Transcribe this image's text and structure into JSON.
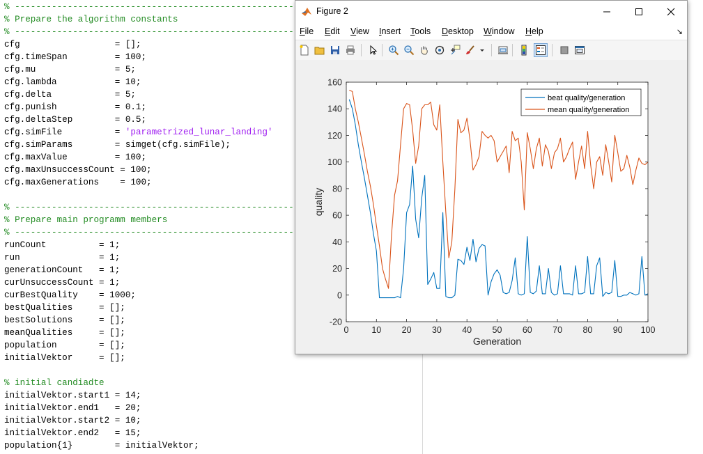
{
  "editor": {
    "lines": [
      {
        "text": "% ----------------------------------------------------------------",
        "cls": "comment"
      },
      {
        "text": "% Prepare the algorithm constants",
        "cls": "comment"
      },
      {
        "text": "% ----------------------------------------------------------------",
        "cls": "comment"
      },
      {
        "text": "cfg                  = [];"
      },
      {
        "text": "cfg.timeSpan         = 100;"
      },
      {
        "text": "cfg.mu               = 5;"
      },
      {
        "text": "cfg.lambda           = 10;"
      },
      {
        "text": "cfg.delta            = 5;"
      },
      {
        "text": "cfg.punish           = 0.1;"
      },
      {
        "text": "cfg.deltaStep        = 0.5;"
      },
      {
        "text": "cfg.simFile          = ",
        "str": "'parametrized_lunar_landing'"
      },
      {
        "text": "cfg.simParams        = simget(cfg.simFile);"
      },
      {
        "text": "cfg.maxValue         = 100;"
      },
      {
        "text": "cfg.maxUnsuccessCount = 100;"
      },
      {
        "text": "cfg.maxGenerations    = 100;"
      },
      {
        "text": ""
      },
      {
        "text": "% ----------------------------------------------------------------",
        "cls": "comment"
      },
      {
        "text": "% Prepare main programm members",
        "cls": "comment"
      },
      {
        "text": "% ----------------------------------------------------------------",
        "cls": "comment"
      },
      {
        "text": "runCount          = 1;"
      },
      {
        "text": "run               = 1;"
      },
      {
        "text": "generationCount   = 1;"
      },
      {
        "text": "curUnsuccessCount = 1;"
      },
      {
        "text": "curBestQuality    = 1000;"
      },
      {
        "text": "bestQualities     = [];"
      },
      {
        "text": "bestSolutions     = [];"
      },
      {
        "text": "meanQualities     = [];"
      },
      {
        "text": "population        = [];"
      },
      {
        "text": "initialVektor     = [];"
      },
      {
        "text": ""
      },
      {
        "text": "% initial candiadte",
        "cls": "comment"
      },
      {
        "text": "initialVektor.start1 = 14;"
      },
      {
        "text": "initialVektor.end1   = 20;"
      },
      {
        "text": "initialVektor.start2 = 10;"
      },
      {
        "text": "initialVektor.end2   = 15;"
      },
      {
        "text": "population{1}        = initialVektor;"
      }
    ]
  },
  "window": {
    "title": "Figure 2",
    "menus": [
      {
        "label": "File",
        "u": "F",
        "rest": "ile"
      },
      {
        "label": "Edit",
        "u": "E",
        "rest": "dit"
      },
      {
        "label": "View",
        "u": "V",
        "rest": "iew"
      },
      {
        "label": "Insert",
        "u": "I",
        "rest": "nsert"
      },
      {
        "label": "Tools",
        "u": "T",
        "rest": "ools"
      },
      {
        "label": "Desktop",
        "u": "D",
        "rest": "esktop"
      },
      {
        "label": "Window",
        "u": "W",
        "rest": "indow"
      },
      {
        "label": "Help",
        "u": "H",
        "rest": "elp"
      }
    ],
    "toolbar_icons": [
      "new-figure-icon",
      "open-file-icon",
      "save-icon",
      "print-icon",
      "pointer-icon",
      "zoom-in-icon",
      "zoom-out-icon",
      "pan-hand-icon",
      "rotate-3d-icon",
      "data-cursor-icon",
      "brush-icon",
      "brush-dropdown-icon",
      "link-plot-icon",
      "colorbar-icon",
      "legend-icon",
      "hide-plot-tools-icon",
      "show-plot-tools-icon"
    ],
    "colors": {
      "series1": "#0072bd",
      "series2": "#d95319"
    }
  },
  "chart_data": {
    "type": "line",
    "xlabel": "Generation",
    "ylabel": "quality",
    "xlim": [
      0,
      100
    ],
    "ylim": [
      -20,
      160
    ],
    "xticks": [
      "0",
      "10",
      "20",
      "30",
      "40",
      "50",
      "60",
      "70",
      "80",
      "90",
      "100"
    ],
    "yticks": [
      "-20",
      "0",
      "20",
      "40",
      "60",
      "80",
      "100",
      "120",
      "140",
      "160"
    ],
    "legend_position": "top-right",
    "series": [
      {
        "name": "beat quality/generation",
        "color": "#0072bd",
        "x": [
          1,
          2,
          3,
          4,
          5,
          6,
          7,
          8,
          9,
          10,
          11,
          12,
          13,
          14,
          15,
          16,
          17,
          18,
          19,
          20,
          21,
          22,
          23,
          24,
          25,
          26,
          27,
          28,
          29,
          30,
          31,
          32,
          33,
          34,
          35,
          36,
          37,
          38,
          39,
          40,
          41,
          42,
          43,
          44,
          45,
          46,
          47,
          48,
          49,
          50,
          51,
          52,
          53,
          54,
          55,
          56,
          57,
          58,
          59,
          60,
          61,
          62,
          63,
          64,
          65,
          66,
          67,
          68,
          69,
          70,
          71,
          72,
          73,
          74,
          75,
          76,
          77,
          78,
          79,
          80,
          81,
          82,
          83,
          84,
          85,
          86,
          87,
          88,
          89,
          90,
          91,
          92,
          93,
          94,
          95,
          96,
          97,
          98,
          99,
          100
        ],
        "y": [
          147,
          140,
          128,
          113,
          100,
          88,
          75,
          62,
          46,
          33,
          -2,
          -2,
          -2,
          -2,
          -2,
          -2,
          -1,
          -2,
          20,
          62,
          68,
          97,
          57,
          43,
          73,
          90,
          8,
          12,
          17,
          5,
          5,
          62,
          -1,
          -2,
          -2,
          0,
          27,
          26,
          23,
          36,
          26,
          42,
          25,
          35,
          38,
          37,
          0,
          10,
          16,
          19,
          15,
          2,
          1,
          2,
          11,
          28,
          1,
          0,
          1,
          44,
          2,
          1,
          3,
          22,
          1,
          1,
          20,
          2,
          0,
          1,
          22,
          1,
          1,
          1,
          0,
          22,
          1,
          1,
          2,
          29,
          1,
          1,
          22,
          28,
          -1,
          2,
          1,
          2,
          26,
          -1,
          -1,
          0,
          0,
          2,
          1,
          0,
          1,
          29,
          0,
          1
        ]
      },
      {
        "name": "mean quality/generation",
        "color": "#d95319",
        "x": [
          1,
          2,
          3,
          4,
          5,
          6,
          7,
          8,
          9,
          10,
          11,
          12,
          13,
          14,
          15,
          16,
          17,
          18,
          19,
          20,
          21,
          22,
          23,
          24,
          25,
          26,
          27,
          28,
          29,
          30,
          31,
          32,
          33,
          34,
          35,
          36,
          37,
          38,
          39,
          40,
          41,
          42,
          43,
          44,
          45,
          46,
          47,
          48,
          49,
          50,
          51,
          52,
          53,
          54,
          55,
          56,
          57,
          58,
          59,
          60,
          61,
          62,
          63,
          64,
          65,
          66,
          67,
          68,
          69,
          70,
          71,
          72,
          73,
          74,
          75,
          76,
          77,
          78,
          79,
          80,
          81,
          82,
          83,
          84,
          85,
          86,
          87,
          88,
          89,
          90,
          91,
          92,
          93,
          94,
          95,
          96,
          97,
          98,
          99,
          100
        ],
        "y": [
          154,
          153,
          140,
          130,
          118,
          106,
          93,
          82,
          68,
          52,
          37,
          20,
          12,
          5,
          45,
          75,
          86,
          113,
          140,
          144,
          143,
          124,
          99,
          112,
          140,
          143,
          143,
          145,
          128,
          124,
          143,
          100,
          62,
          28,
          40,
          80,
          132,
          122,
          124,
          133,
          117,
          94,
          98,
          104,
          123,
          120,
          118,
          120,
          116,
          100,
          104,
          108,
          112,
          92,
          123,
          116,
          118,
          100,
          64,
          122,
          110,
          95,
          110,
          118,
          97,
          113,
          108,
          95,
          107,
          110,
          118,
          100,
          104,
          110,
          115,
          87,
          100,
          112,
          95,
          123,
          98,
          80,
          100,
          104,
          90,
          113,
          100,
          85,
          120,
          107,
          93,
          95,
          105,
          96,
          83,
          94,
          103,
          99,
          98,
          100
        ]
      }
    ]
  }
}
